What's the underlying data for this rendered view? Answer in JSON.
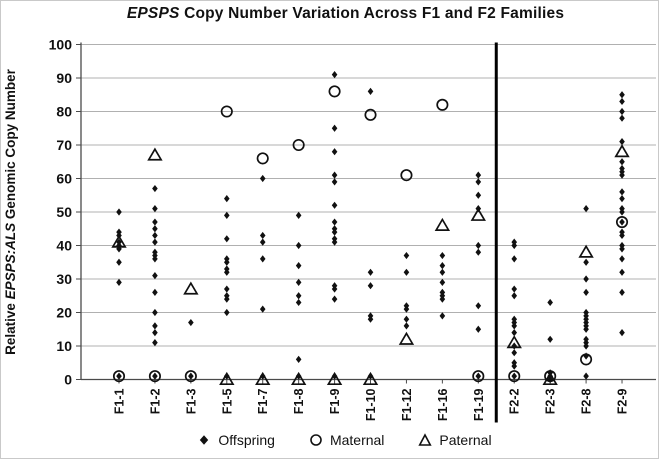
{
  "chart_data": {
    "type": "scatter",
    "title": {
      "italic": "EPSPS",
      "rest": " Copy Number Variation Across F1 and F2 Families"
    },
    "ylabel": {
      "prefix": "Relative ",
      "italic": "EPSPS:ALS",
      "suffix": " Genomic Copy Number"
    },
    "xlabel": "",
    "ylim": [
      0,
      100
    ],
    "yticks": [
      "0",
      "10",
      "20",
      "30",
      "40",
      "50",
      "60",
      "70",
      "80",
      "90",
      "100"
    ],
    "grid": "horizontal",
    "legend_position": "bottom",
    "separator_after_category": "F1-19",
    "categories": [
      "F1-1",
      "F1-2",
      "F1-3",
      "F1-5",
      "F1-7",
      "F1-8",
      "F1-9",
      "F1-10",
      "F1-12",
      "F1-16",
      "F1-19",
      "F2-2",
      "F2-3",
      "F2-8",
      "F2-9"
    ],
    "series": [
      {
        "name": "Offspring",
        "marker": "diamond",
        "values": [
          [
            50,
            44,
            43,
            41,
            40,
            39,
            35,
            29,
            1
          ],
          [
            57,
            51,
            47,
            45,
            43,
            41,
            38,
            37,
            36,
            31,
            26,
            20,
            16,
            14,
            11,
            1
          ],
          [
            17,
            1
          ],
          [
            54,
            49,
            42,
            36,
            35,
            33,
            32,
            27,
            25,
            24,
            20,
            1
          ],
          [
            60,
            43,
            41,
            36,
            21,
            1
          ],
          [
            49,
            40,
            34,
            29,
            25,
            23,
            6,
            1
          ],
          [
            91,
            75,
            68,
            61,
            59,
            52,
            47,
            45,
            44,
            42,
            41,
            28,
            27,
            24,
            1
          ],
          [
            86,
            32,
            28,
            19,
            18,
            1
          ],
          [
            37,
            32,
            22,
            21,
            18,
            16
          ],
          [
            37,
            34,
            32,
            29,
            26,
            25,
            24,
            19
          ],
          [
            61,
            59,
            55,
            51,
            40,
            38,
            22,
            15,
            1
          ],
          [
            41,
            40,
            36,
            27,
            25,
            18,
            17,
            16,
            14,
            10,
            8,
            5,
            4,
            1
          ],
          [
            23,
            12,
            2,
            1,
            0
          ],
          [
            51,
            35,
            30,
            26,
            20,
            19,
            18,
            17,
            16,
            15,
            12,
            11,
            10,
            7,
            1
          ],
          [
            85,
            83,
            80,
            78,
            71,
            65,
            63,
            62,
            61,
            56,
            54,
            51,
            50,
            47,
            44,
            43,
            40,
            39,
            36,
            32,
            26,
            14
          ]
        ]
      },
      {
        "name": "Maternal",
        "marker": "circle",
        "values": [
          [
            1
          ],
          [
            1
          ],
          [
            1
          ],
          [
            80
          ],
          [
            66
          ],
          [
            70
          ],
          [
            86
          ],
          [
            79
          ],
          [
            61
          ],
          [
            82
          ],
          [
            1
          ],
          [
            1
          ],
          [
            1
          ],
          [
            6
          ],
          [
            47
          ]
        ]
      },
      {
        "name": "Paternal",
        "marker": "triangle",
        "values": [
          [
            41
          ],
          [
            67
          ],
          [
            27
          ],
          [
            0
          ],
          [
            0
          ],
          [
            0
          ],
          [
            0
          ],
          [
            0
          ],
          [
            12
          ],
          [
            46
          ],
          [
            49
          ],
          [
            11
          ],
          [
            0
          ],
          [
            38
          ],
          [
            68
          ]
        ]
      }
    ],
    "legend": [
      {
        "label": "Offspring",
        "marker": "diamond"
      },
      {
        "label": "Maternal",
        "marker": "circle"
      },
      {
        "label": "Paternal",
        "marker": "triangle"
      }
    ],
    "colors": {
      "marker": "#111111",
      "grid": "#b0b0b0",
      "axis": "#4a4a4a",
      "separator": "#000000",
      "text": "#111111"
    }
  }
}
